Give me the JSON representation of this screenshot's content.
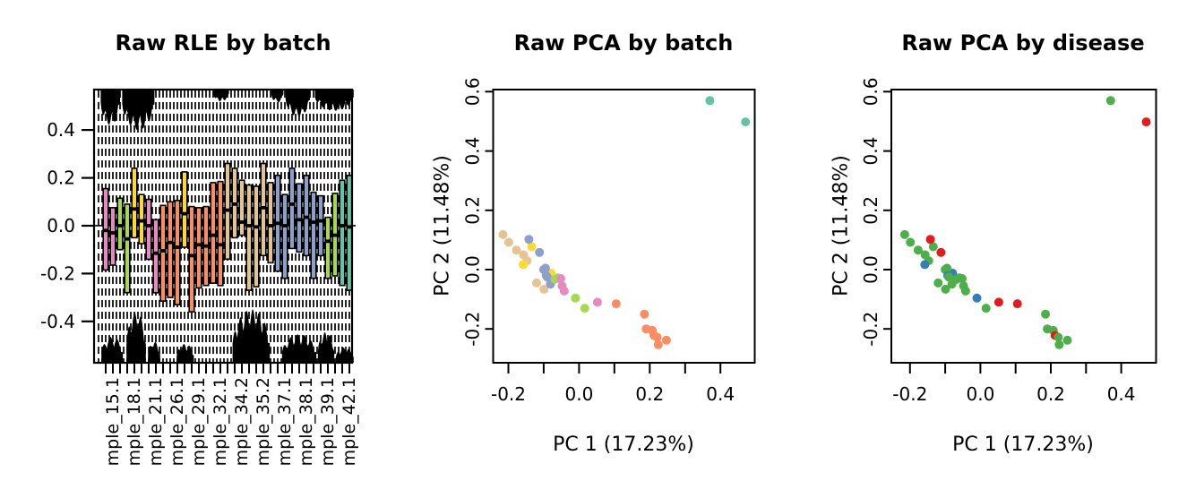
{
  "palettes": {
    "batch": {
      "pink": "#E78AC3",
      "green": "#A6D854",
      "yellow": "#FFD92F",
      "orange": "#FC8D62",
      "tan": "#E5C494",
      "blue": "#8DA0CB",
      "teal": "#66C2A5"
    },
    "disease": {
      "red": "#E41A1C",
      "green": "#4DAF4A",
      "blue": "#377EB8"
    }
  },
  "samples": [
    {
      "x": -0.215,
      "y": 0.118,
      "batch": "tan",
      "disease": "green"
    },
    {
      "x": -0.199,
      "y": 0.092,
      "batch": "tan",
      "disease": "green"
    },
    {
      "x": -0.177,
      "y": 0.066,
      "batch": "tan",
      "disease": "green"
    },
    {
      "x": -0.157,
      "y": 0.05,
      "batch": "tan",
      "disease": "green"
    },
    {
      "x": -0.147,
      "y": 0.03,
      "batch": "tan",
      "disease": "green"
    },
    {
      "x": -0.134,
      "y": 0.077,
      "batch": "yellow",
      "disease": "green"
    },
    {
      "x": -0.142,
      "y": 0.102,
      "batch": "blue",
      "disease": "red"
    },
    {
      "x": -0.112,
      "y": 0.058,
      "batch": "blue",
      "disease": "red"
    },
    {
      "x": -0.158,
      "y": 0.017,
      "batch": "yellow",
      "disease": "blue"
    },
    {
      "x": -0.12,
      "y": -0.045,
      "batch": "tan",
      "disease": "green"
    },
    {
      "x": -0.099,
      "y": -0.066,
      "batch": "tan",
      "disease": "green"
    },
    {
      "x": -0.1,
      "y": 0.0,
      "batch": "blue",
      "disease": "green"
    },
    {
      "x": -0.079,
      "y": -0.012,
      "batch": "yellow",
      "disease": "blue"
    },
    {
      "x": -0.095,
      "y": 0.005,
      "batch": "blue",
      "disease": "green"
    },
    {
      "x": -0.093,
      "y": -0.02,
      "batch": "blue",
      "disease": "blue"
    },
    {
      "x": -0.081,
      "y": -0.049,
      "batch": "blue",
      "disease": "green"
    },
    {
      "x": -0.09,
      "y": -0.025,
      "batch": "blue",
      "disease": "green"
    },
    {
      "x": -0.068,
      "y": -0.033,
      "batch": "green",
      "disease": "green"
    },
    {
      "x": -0.06,
      "y": -0.028,
      "batch": "green",
      "disease": "green"
    },
    {
      "x": -0.052,
      "y": -0.03,
      "batch": "pink",
      "disease": "green"
    },
    {
      "x": -0.048,
      "y": -0.055,
      "batch": "pink",
      "disease": "green"
    },
    {
      "x": -0.042,
      "y": -0.072,
      "batch": "pink",
      "disease": "green"
    },
    {
      "x": -0.01,
      "y": -0.096,
      "batch": "green",
      "disease": "blue"
    },
    {
      "x": 0.016,
      "y": -0.13,
      "batch": "green",
      "disease": "green"
    },
    {
      "x": 0.052,
      "y": -0.11,
      "batch": "pink",
      "disease": "red"
    },
    {
      "x": 0.105,
      "y": -0.115,
      "batch": "orange",
      "disease": "red"
    },
    {
      "x": 0.185,
      "y": -0.15,
      "batch": "orange",
      "disease": "green"
    },
    {
      "x": 0.19,
      "y": -0.2,
      "batch": "orange",
      "disease": "green"
    },
    {
      "x": 0.207,
      "y": -0.205,
      "batch": "orange",
      "disease": "green"
    },
    {
      "x": 0.212,
      "y": -0.222,
      "batch": "orange",
      "disease": "red"
    },
    {
      "x": 0.221,
      "y": -0.228,
      "batch": "orange",
      "disease": "green"
    },
    {
      "x": 0.247,
      "y": -0.238,
      "batch": "orange",
      "disease": "green"
    },
    {
      "x": 0.224,
      "y": -0.253,
      "batch": "orange",
      "disease": "green"
    },
    {
      "x": 0.37,
      "y": 0.57,
      "batch": "teal",
      "disease": "green"
    },
    {
      "x": 0.471,
      "y": 0.498,
      "batch": "teal",
      "disease": "red"
    }
  ],
  "chart_data": [
    {
      "type": "boxplot",
      "title": "Raw RLE by batch",
      "ylim": [
        -0.573,
        0.569
      ],
      "y_ticks": [
        -0.4,
        -0.2,
        0.0,
        0.2,
        0.4
      ],
      "hline": 0,
      "whisker_style": "dashed, extends to panel edges (clipped)",
      "x_tick_labels": [
        "mple_15.1",
        "mple_18.1",
        "mple_21.1",
        "mple_26.1",
        "mple_29.1",
        "mple_32.1",
        "mple_34.2",
        "mple_35.2",
        "mple_37.1",
        "mple_38.1",
        "mple_39.1",
        "mple_42.1"
      ],
      "x_label_box_positions": [
        2,
        5,
        8,
        11,
        14,
        17,
        20,
        23,
        26,
        29,
        32,
        35
      ],
      "boxes": [
        {
          "batch": "pink",
          "q1": -0.185,
          "median": -0.02,
          "q3": 0.155
        },
        {
          "batch": "pink",
          "q1": -0.165,
          "median": -0.03,
          "q3": 0.075
        },
        {
          "batch": "green",
          "q1": -0.1,
          "median": 0.0,
          "q3": 0.115
        },
        {
          "batch": "green",
          "q1": -0.28,
          "median": -0.055,
          "q3": 0.09
        },
        {
          "batch": "yellow",
          "q1": -0.05,
          "median": 0.07,
          "q3": 0.24
        },
        {
          "batch": "yellow",
          "q1": -0.075,
          "median": 0.02,
          "q3": 0.13
        },
        {
          "batch": "pink",
          "q1": -0.14,
          "median": 0.0,
          "q3": 0.11
        },
        {
          "batch": "pink",
          "q1": -0.28,
          "median": -0.115,
          "q3": 0.025
        },
        {
          "batch": "orange",
          "q1": -0.315,
          "median": -0.105,
          "q3": 0.085
        },
        {
          "batch": "orange",
          "q1": -0.3,
          "median": -0.07,
          "q3": 0.1
        },
        {
          "batch": "orange",
          "q1": -0.33,
          "median": -0.09,
          "q3": 0.105
        },
        {
          "batch": "yellow",
          "q1": -0.09,
          "median": 0.05,
          "q3": 0.225
        },
        {
          "batch": "orange",
          "q1": -0.36,
          "median": -0.125,
          "q3": 0.08
        },
        {
          "batch": "orange",
          "q1": -0.26,
          "median": -0.08,
          "q3": 0.075
        },
        {
          "batch": "orange",
          "q1": -0.25,
          "median": -0.085,
          "q3": 0.08
        },
        {
          "batch": "orange",
          "q1": -0.24,
          "median": -0.04,
          "q3": 0.18
        },
        {
          "batch": "orange",
          "q1": -0.25,
          "median": -0.08,
          "q3": 0.185
        },
        {
          "batch": "tan",
          "q1": -0.14,
          "median": 0.065,
          "q3": 0.26
        },
        {
          "batch": "tan",
          "q1": -0.05,
          "median": 0.09,
          "q3": 0.24
        },
        {
          "batch": "tan",
          "q1": -0.04,
          "median": 0.015,
          "q3": 0.19
        },
        {
          "batch": "tan",
          "q1": -0.27,
          "median": 0.0,
          "q3": 0.17
        },
        {
          "batch": "tan",
          "q1": -0.255,
          "median": -0.005,
          "q3": 0.165
        },
        {
          "batch": "tan",
          "q1": -0.125,
          "median": 0.075,
          "q3": 0.26
        },
        {
          "batch": "tan",
          "q1": -0.155,
          "median": 0.0,
          "q3": 0.18
        },
        {
          "batch": "blue",
          "q1": -0.19,
          "median": 0.01,
          "q3": 0.21
        },
        {
          "batch": "blue",
          "q1": -0.22,
          "median": 0.0,
          "q3": 0.13
        },
        {
          "batch": "blue",
          "q1": -0.095,
          "median": 0.09,
          "q3": 0.24
        },
        {
          "batch": "blue",
          "q1": -0.11,
          "median": 0.025,
          "q3": 0.175
        },
        {
          "batch": "blue",
          "q1": -0.125,
          "median": 0.035,
          "q3": 0.21
        },
        {
          "batch": "blue",
          "q1": -0.22,
          "median": 0.015,
          "q3": 0.14
        },
        {
          "batch": "blue",
          "q1": -0.125,
          "median": 0.02,
          "q3": 0.125
        },
        {
          "batch": "green",
          "q1": -0.22,
          "median": -0.065,
          "q3": 0.035
        },
        {
          "batch": "green",
          "q1": -0.21,
          "median": -0.04,
          "q3": 0.135
        },
        {
          "batch": "teal",
          "q1": -0.25,
          "median": 0.0,
          "q3": 0.19
        },
        {
          "batch": "teal",
          "q1": -0.27,
          "median": -0.005,
          "q3": 0.21
        }
      ],
      "outlier_clusters_top": [
        {
          "from_box": 0.3,
          "to_box": 3.0,
          "extent": 0.15
        },
        {
          "from_box": 3.3,
          "to_box": 7.8,
          "extent": 0.17
        },
        {
          "from_box": 16.0,
          "to_box": 18.2,
          "extent": 0.05
        },
        {
          "from_box": 24.1,
          "to_box": 25.8,
          "extent": 0.055
        },
        {
          "from_box": 26.1,
          "to_box": 29.5,
          "extent": 0.115
        },
        {
          "from_box": 30.2,
          "to_box": 35.6,
          "extent": 0.09
        }
      ],
      "outlier_clusters_bottom": [
        {
          "from_box": 0.4,
          "to_box": 3.4,
          "extent": 0.11
        },
        {
          "from_box": 3.9,
          "to_box": 6.6,
          "extent": 0.215
        },
        {
          "from_box": 6.9,
          "to_box": 8.6,
          "extent": 0.09
        },
        {
          "from_box": 10.9,
          "to_box": 13.3,
          "extent": 0.08
        },
        {
          "from_box": 18.7,
          "to_box": 23.9,
          "extent": 0.225
        },
        {
          "from_box": 25.6,
          "to_box": 30.4,
          "extent": 0.12
        },
        {
          "from_box": 30.6,
          "to_box": 32.9,
          "extent": 0.13
        },
        {
          "from_box": 33.1,
          "to_box": 35.6,
          "extent": 0.065
        }
      ]
    },
    {
      "type": "scatter",
      "title": "Raw PCA by batch",
      "xlabel": "PC 1 (17.23%)",
      "ylabel": "PC 2 (11.48%)",
      "xlim": [
        -0.243,
        0.497
      ],
      "ylim": [
        -0.314,
        0.607
      ],
      "x_ticks": [
        -0.2,
        -0.1,
        0.0,
        0.1,
        0.2,
        0.3,
        0.4
      ],
      "x_tick_labels_at": [
        -0.2,
        0.0,
        0.2,
        0.4
      ],
      "y_ticks": [
        -0.2,
        0.0,
        0.2,
        0.4,
        0.6
      ],
      "color_by": "batch",
      "legend": "none",
      "grid": false
    },
    {
      "type": "scatter",
      "title": "Raw PCA by disease",
      "xlabel": "PC 1 (17.23%)",
      "ylabel": "PC 2 (11.48%)",
      "xlim": [
        -0.253,
        0.499
      ],
      "ylim": [
        -0.314,
        0.607
      ],
      "x_ticks": [
        -0.2,
        -0.1,
        0.0,
        0.1,
        0.2,
        0.3,
        0.4
      ],
      "x_tick_labels_at": [
        -0.2,
        0.0,
        0.2,
        0.4
      ],
      "y_ticks": [
        -0.2,
        0.0,
        0.2,
        0.4,
        0.6
      ],
      "color_by": "disease",
      "legend": "none",
      "grid": false
    }
  ]
}
